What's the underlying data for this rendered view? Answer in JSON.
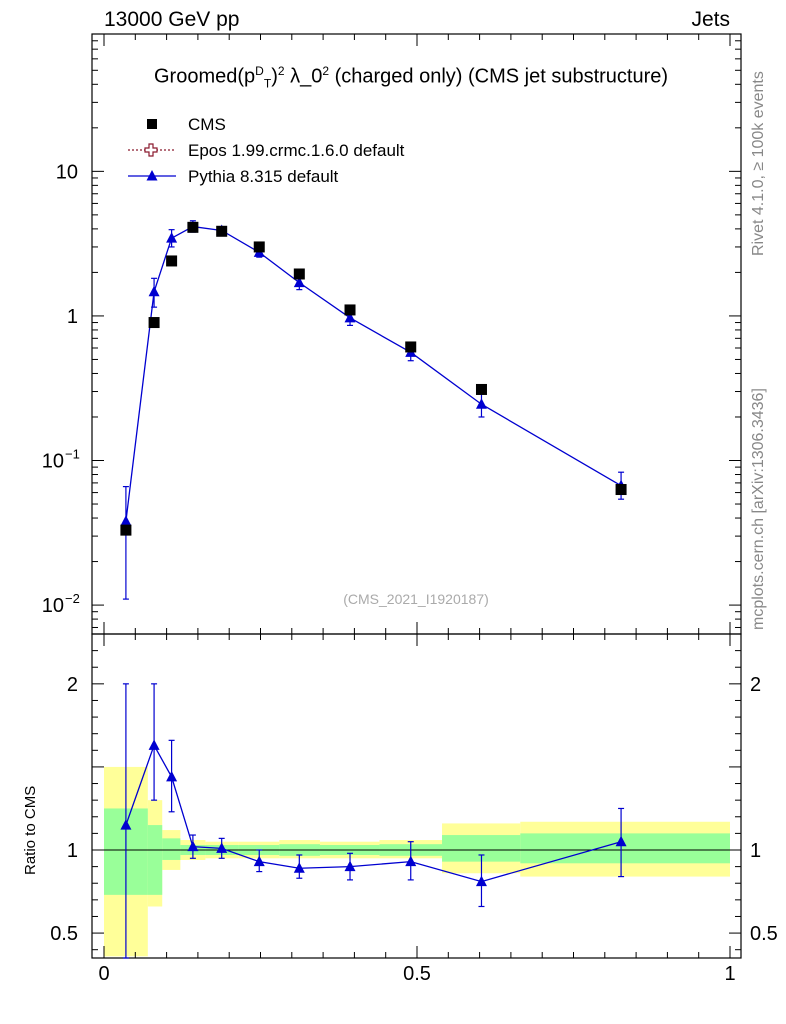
{
  "header": {
    "left": "13000 GeV pp",
    "right": "Jets"
  },
  "side": {
    "rivet": "Rivet 4.1.0, ≥ 100k events",
    "mcplots": "mcplots.cern.ch [arXiv:1306.3436]"
  },
  "title": {
    "prefix": "Groomed",
    "lp": "(p",
    "sup_d": "D",
    "sub_t": "T",
    "rp": ")",
    "sup_2a": "2",
    "lambda": " λ_0",
    "sup_2b": "2",
    "suffix": "  (charged only) (CMS jet substructure)"
  },
  "watermark": "(CMS_2021_I1920187)",
  "ratio_label": "Ratio to CMS",
  "colors": {
    "cms": "#000000",
    "epos": "#8b1a2e",
    "pythia": "#0000d0",
    "band_green": "#99ff99",
    "band_yellow": "#ffff99"
  },
  "chart_data": {
    "type": "scatter",
    "xlim": [
      0,
      1
    ],
    "main_ylim_log10": [
      -2.2,
      1.95
    ],
    "ratio_ylim": [
      0.35,
      2.3
    ],
    "x_ticks": [
      {
        "v": 0,
        "label": "0"
      },
      {
        "v": 0.5,
        "label": "0.5"
      },
      {
        "v": 1,
        "label": "1"
      }
    ],
    "main_y_ticks": [
      {
        "v": 10,
        "base": "10",
        "exp": ""
      },
      {
        "v": 1,
        "base": "1",
        "exp": ""
      },
      {
        "v": 0.1,
        "base": "10",
        "exp": "−1"
      },
      {
        "v": 0.01,
        "base": "10",
        "exp": "−2"
      }
    ],
    "ratio_y_ticks": [
      {
        "v": 2,
        "label": "2"
      },
      {
        "v": 1,
        "label": "1"
      },
      {
        "v": 0.5,
        "label": "0.5"
      }
    ],
    "legend": [
      {
        "key": "cms",
        "label": "CMS"
      },
      {
        "key": "epos",
        "label": "Epos 1.99.crmc.1.6.0 default"
      },
      {
        "key": "pythia",
        "label": "Pythia 8.315 default"
      }
    ],
    "cms": [
      {
        "x": 0.035,
        "y": 0.033
      },
      {
        "x": 0.08,
        "y": 0.9
      },
      {
        "x": 0.108,
        "y": 2.4
      },
      {
        "x": 0.142,
        "y": 4.1
      },
      {
        "x": 0.188,
        "y": 3.85
      },
      {
        "x": 0.248,
        "y": 3.0
      },
      {
        "x": 0.312,
        "y": 1.95
      },
      {
        "x": 0.393,
        "y": 1.1
      },
      {
        "x": 0.49,
        "y": 0.61
      },
      {
        "x": 0.603,
        "y": 0.31
      },
      {
        "x": 0.826,
        "y": 0.063
      }
    ],
    "pythia": [
      {
        "x": 0.035,
        "y": 0.038,
        "lo": 0.011,
        "hi": 0.066
      },
      {
        "x": 0.08,
        "y": 1.47,
        "lo": 1.15,
        "hi": 1.82
      },
      {
        "x": 0.108,
        "y": 3.45,
        "lo": 3.0,
        "hi": 3.95
      },
      {
        "x": 0.142,
        "y": 4.15,
        "lo": 3.8,
        "hi": 4.55
      },
      {
        "x": 0.188,
        "y": 3.9,
        "lo": 3.65,
        "hi": 4.1
      },
      {
        "x": 0.248,
        "y": 2.75,
        "lo": 2.55,
        "hi": 2.95
      },
      {
        "x": 0.312,
        "y": 1.7,
        "lo": 1.52,
        "hi": 1.88
      },
      {
        "x": 0.393,
        "y": 0.97,
        "lo": 0.86,
        "hi": 1.08
      },
      {
        "x": 0.49,
        "y": 0.56,
        "lo": 0.49,
        "hi": 0.63
      },
      {
        "x": 0.603,
        "y": 0.245,
        "lo": 0.2,
        "hi": 0.29
      },
      {
        "x": 0.826,
        "y": 0.067,
        "lo": 0.054,
        "hi": 0.083
      }
    ],
    "ratio": [
      {
        "x": 0.035,
        "y": 1.15,
        "lo": 0.33,
        "hi": 2.0
      },
      {
        "x": 0.08,
        "y": 1.63,
        "lo": 1.3,
        "hi": 2.0
      },
      {
        "x": 0.108,
        "y": 1.44,
        "lo": 1.23,
        "hi": 1.66
      },
      {
        "x": 0.142,
        "y": 1.02,
        "lo": 0.95,
        "hi": 1.09
      },
      {
        "x": 0.188,
        "y": 1.01,
        "lo": 0.95,
        "hi": 1.07
      },
      {
        "x": 0.248,
        "y": 0.93,
        "lo": 0.87,
        "hi": 1.0
      },
      {
        "x": 0.312,
        "y": 0.89,
        "lo": 0.83,
        "hi": 0.97
      },
      {
        "x": 0.393,
        "y": 0.9,
        "lo": 0.82,
        "hi": 0.98
      },
      {
        "x": 0.49,
        "y": 0.93,
        "lo": 0.82,
        "hi": 1.05
      },
      {
        "x": 0.603,
        "y": 0.81,
        "lo": 0.66,
        "hi": 0.97
      },
      {
        "x": 0.826,
        "y": 1.05,
        "lo": 0.84,
        "hi": 1.25
      }
    ],
    "bands": [
      {
        "x0": 0.0,
        "x1": 0.07,
        "g": [
          0.73,
          1.25
        ],
        "y": [
          0.36,
          1.5
        ]
      },
      {
        "x0": 0.07,
        "x1": 0.093,
        "g": [
          0.73,
          1.15
        ],
        "y": [
          0.66,
          1.3
        ]
      },
      {
        "x0": 0.093,
        "x1": 0.122,
        "g": [
          0.94,
          1.07
        ],
        "y": [
          0.88,
          1.12
        ]
      },
      {
        "x0": 0.122,
        "x1": 0.162,
        "g": [
          0.97,
          1.03
        ],
        "y": [
          0.94,
          1.06
        ]
      },
      {
        "x0": 0.162,
        "x1": 0.215,
        "g": [
          0.97,
          1.03
        ],
        "y": [
          0.95,
          1.05
        ]
      },
      {
        "x0": 0.215,
        "x1": 0.28,
        "g": [
          0.97,
          1.03
        ],
        "y": [
          0.95,
          1.05
        ]
      },
      {
        "x0": 0.28,
        "x1": 0.345,
        "g": [
          0.965,
          1.035
        ],
        "y": [
          0.95,
          1.06
        ]
      },
      {
        "x0": 0.345,
        "x1": 0.44,
        "g": [
          0.97,
          1.03
        ],
        "y": [
          0.95,
          1.05
        ]
      },
      {
        "x0": 0.44,
        "x1": 0.54,
        "g": [
          0.965,
          1.035
        ],
        "y": [
          0.95,
          1.06
        ]
      },
      {
        "x0": 0.54,
        "x1": 0.665,
        "g": [
          0.93,
          1.09
        ],
        "y": [
          0.86,
          1.16
        ]
      },
      {
        "x0": 0.665,
        "x1": 1.0,
        "g": [
          0.92,
          1.1
        ],
        "y": [
          0.84,
          1.17
        ]
      }
    ]
  }
}
